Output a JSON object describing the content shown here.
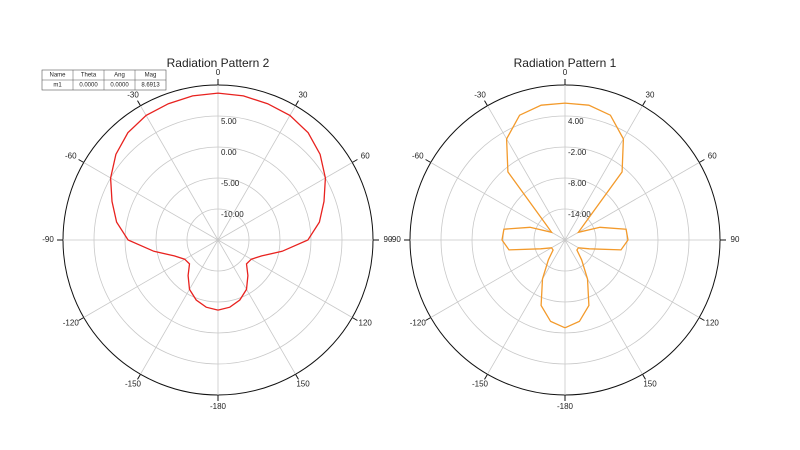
{
  "chart_data": [
    {
      "type": "polar",
      "title": "Radiation Pattern 2",
      "theta": [
        -180,
        -170,
        -160,
        -150,
        -140,
        -130,
        -120,
        -110,
        -100,
        -90,
        -80,
        -70,
        -60,
        -50,
        -40,
        -30,
        -20,
        -10,
        0,
        10,
        20,
        30,
        40,
        50,
        60,
        70,
        80,
        90,
        100,
        110,
        120,
        130,
        140,
        150,
        160,
        170,
        180
      ],
      "values": [
        -3.7,
        -4.0,
        -4.7,
        -5.8,
        -7.5,
        -9.0,
        -8.8,
        -7.5,
        -4.5,
        -0.5,
        1.6,
        3.2,
        5.0,
        6.5,
        7.6,
        8.2,
        8.4,
        8.6,
        8.7,
        8.6,
        8.4,
        8.2,
        7.6,
        6.5,
        5.0,
        3.2,
        1.6,
        -0.5,
        -4.5,
        -7.5,
        -8.8,
        -9.0,
        -7.5,
        -5.8,
        -4.7,
        -4.0,
        -3.7
      ],
      "color": "#e8221f",
      "rlim": [
        -15,
        10
      ],
      "rticks": [
        {
          "value": -10,
          "label": "-10.00"
        },
        {
          "value": -5,
          "label": "-5.00"
        },
        {
          "value": 0,
          "label": "0.00"
        },
        {
          "value": 5,
          "label": "5.00"
        }
      ],
      "thetaticks": [
        -180,
        -150,
        -120,
        -90,
        -60,
        -30,
        0,
        30,
        60,
        90,
        120,
        150
      ],
      "marker_table": {
        "columns": [
          "Name",
          "Theta",
          "Ang",
          "Mag"
        ],
        "rows": [
          [
            "m1",
            "0.0000",
            "0.0000",
            "8.6913"
          ]
        ]
      }
    },
    {
      "type": "polar",
      "title": "Radiation Pattern 1",
      "theta": [
        -180,
        -170,
        -160,
        -150,
        -140,
        -130,
        -120,
        -110,
        -100,
        -90,
        -80,
        -70,
        -60,
        -50,
        -40,
        -30,
        -20,
        -10,
        0,
        10,
        20,
        30,
        40,
        50,
        60,
        70,
        80,
        90,
        100,
        110,
        120,
        130,
        140,
        150,
        160,
        170,
        180
      ],
      "values": [
        -3,
        -4,
        -6.5,
        -11.3,
        -15,
        -17,
        -17,
        -15,
        -9,
        -7.8,
        -8,
        -12.8,
        -17,
        -15,
        -2.8,
        2.6,
        5.7,
        6.5,
        6.5,
        6.5,
        5.7,
        2.6,
        -2.8,
        -15,
        -17,
        -12.8,
        -8,
        -7.8,
        -9,
        -15,
        -17,
        -17,
        -15,
        -11.3,
        -6.5,
        -4,
        -3
      ],
      "color": "#f39a2b",
      "rlim": [
        -20,
        10
      ],
      "rticks": [
        {
          "value": -14,
          "label": "-14.00"
        },
        {
          "value": -8,
          "label": "-8.00"
        },
        {
          "value": -2,
          "label": "-2.00"
        },
        {
          "value": 4,
          "label": "4.00"
        }
      ],
      "thetaticks": [
        -180,
        -150,
        -120,
        -90,
        -60,
        -30,
        0,
        30,
        60,
        90,
        120,
        150
      ]
    }
  ]
}
